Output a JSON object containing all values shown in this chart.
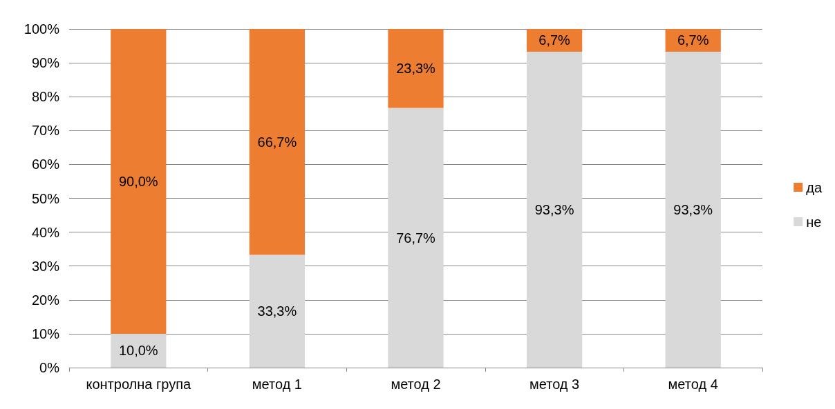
{
  "chart_data": {
    "type": "bar",
    "stacked": true,
    "categories": [
      "контролна група",
      "метод 1",
      "метод 2",
      "метод 3",
      "метод 4"
    ],
    "series": [
      {
        "name": "не",
        "color": "#d9d9d9",
        "values": [
          10.0,
          33.3,
          76.7,
          93.3,
          93.3
        ],
        "value_labels": [
          "10,0%",
          "33,3%",
          "76,7%",
          "93,3%",
          "93,3%"
        ]
      },
      {
        "name": "да",
        "color": "#ed7d31",
        "values": [
          90.0,
          66.7,
          23.3,
          6.7,
          6.7
        ],
        "value_labels": [
          "90,0%",
          "66,7%",
          "23,3%",
          "6,7%",
          "6,7%"
        ]
      }
    ],
    "ylim": [
      0,
      100
    ],
    "yticks": [
      {
        "value": 0,
        "label": "0%"
      },
      {
        "value": 10,
        "label": "10%"
      },
      {
        "value": 20,
        "label": "20%"
      },
      {
        "value": 30,
        "label": "30%"
      },
      {
        "value": 40,
        "label": "40%"
      },
      {
        "value": 50,
        "label": "50%"
      },
      {
        "value": 60,
        "label": "60%"
      },
      {
        "value": 70,
        "label": "70%"
      },
      {
        "value": 80,
        "label": "80%"
      },
      {
        "value": 90,
        "label": "90%"
      },
      {
        "value": 100,
        "label": "100%"
      }
    ],
    "grid": "y",
    "legend": "right"
  }
}
